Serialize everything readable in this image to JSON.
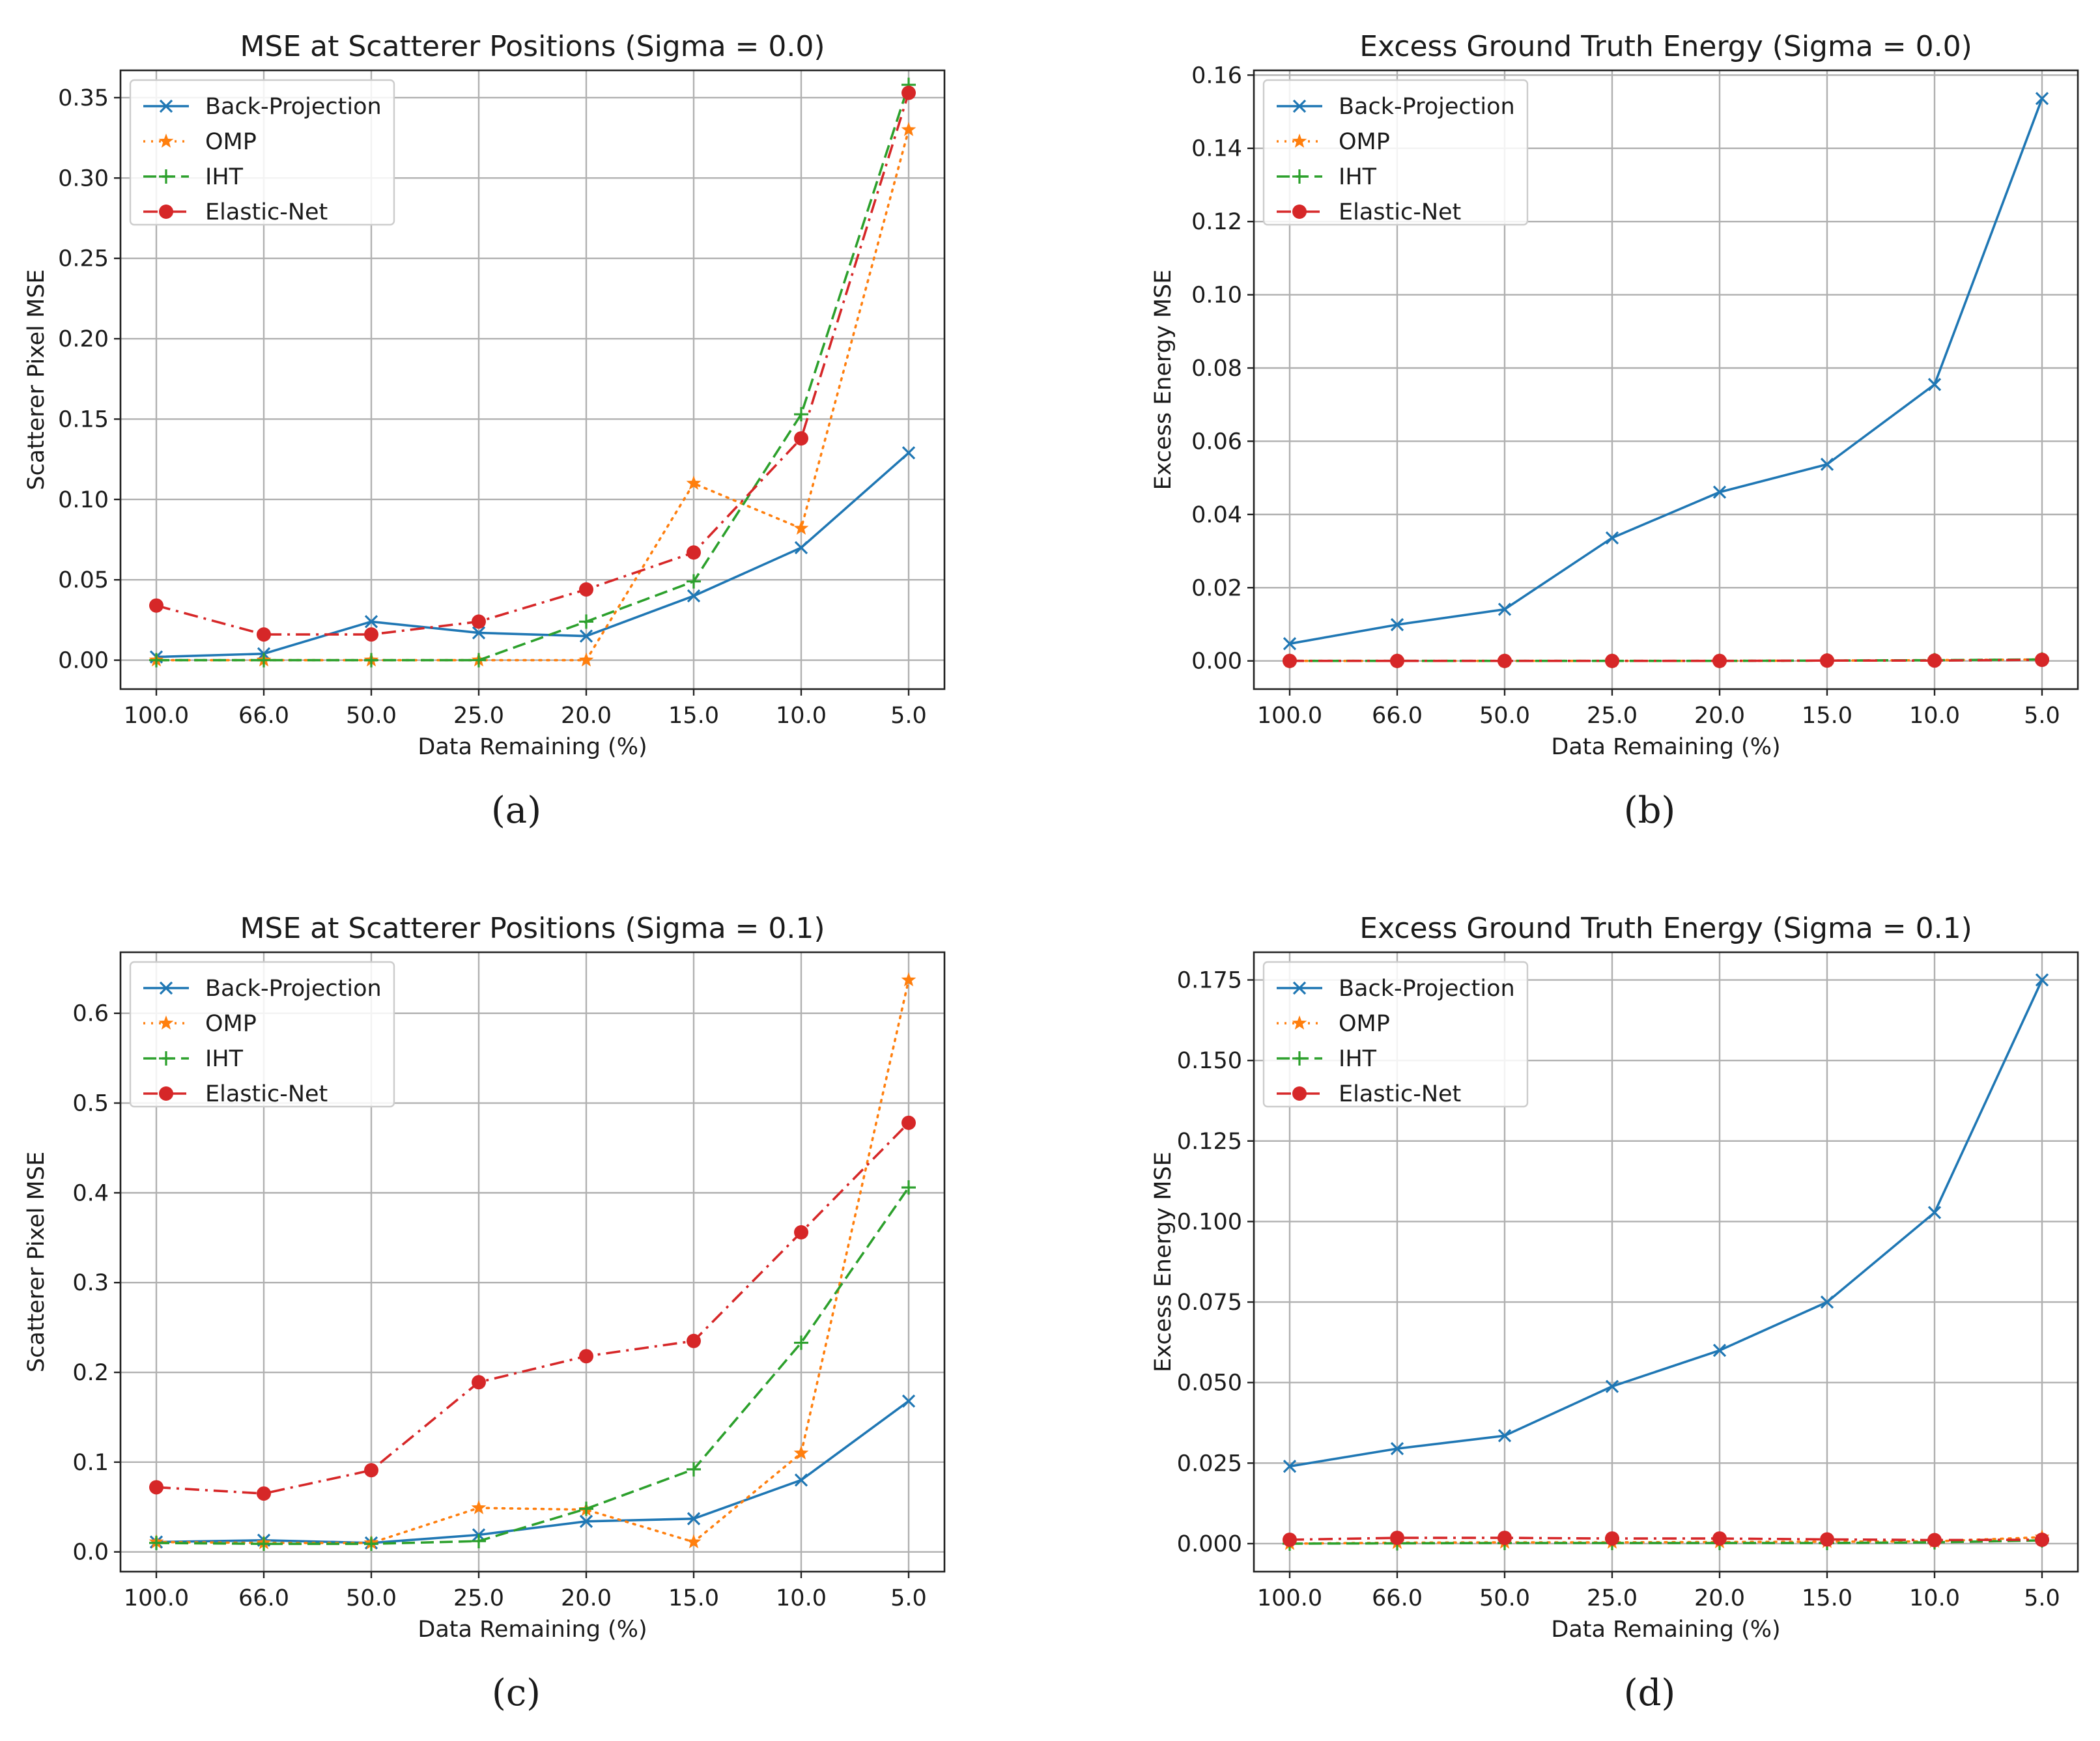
{
  "chart_data": [
    {
      "type": "line",
      "title": "MSE at Scatterer Positions (Sigma = 0.0)",
      "xlabel": "Data Remaining (%)",
      "ylabel": "Scatterer Pixel MSE",
      "categories": [
        "100.0",
        "66.0",
        "50.0",
        "25.0",
        "20.0",
        "15.0",
        "10.0",
        "5.0"
      ],
      "ylim": [
        -0.018,
        0.367
      ],
      "yticks": [
        0.0,
        0.05,
        0.1,
        0.15,
        0.2,
        0.25,
        0.3,
        0.35
      ],
      "ytick_labels": [
        "0.00",
        "0.05",
        "0.10",
        "0.15",
        "0.20",
        "0.25",
        "0.30",
        "0.35"
      ],
      "legend": "top-left",
      "grid": true,
      "caption": "(a)",
      "series": [
        {
          "name": "Back-Projection",
          "values": [
            0.002,
            0.004,
            0.024,
            0.017,
            0.015,
            0.04,
            0.07,
            0.129
          ]
        },
        {
          "name": "OMP",
          "values": [
            0.0,
            0.0,
            0.0,
            0.0,
            0.0,
            0.11,
            0.082,
            0.33
          ]
        },
        {
          "name": "IHT",
          "values": [
            0.0,
            0.0,
            0.0,
            0.0,
            0.024,
            0.049,
            0.153,
            0.358
          ]
        },
        {
          "name": "Elastic-Net",
          "values": [
            0.034,
            0.016,
            0.016,
            0.024,
            0.044,
            0.067,
            0.138,
            0.353
          ]
        }
      ]
    },
    {
      "type": "line",
      "title": "Excess Ground Truth Energy (Sigma = 0.0)",
      "xlabel": "Data Remaining (%)",
      "ylabel": "Excess Energy MSE",
      "categories": [
        "100.0",
        "66.0",
        "50.0",
        "25.0",
        "20.0",
        "15.0",
        "10.0",
        "5.0"
      ],
      "ylim": [
        -0.0077,
        0.1613
      ],
      "yticks": [
        0.0,
        0.02,
        0.04,
        0.06,
        0.08,
        0.1,
        0.12,
        0.14,
        0.16
      ],
      "ytick_labels": [
        "0.00",
        "0.02",
        "0.04",
        "0.06",
        "0.08",
        "0.10",
        "0.12",
        "0.14",
        "0.16"
      ],
      "legend": "top-left",
      "grid": true,
      "caption": "(b)",
      "series": [
        {
          "name": "Back-Projection",
          "values": [
            0.0047,
            0.0099,
            0.0141,
            0.0336,
            0.0461,
            0.0537,
            0.0755,
            0.1536
          ]
        },
        {
          "name": "OMP",
          "values": [
            0.0,
            0.0,
            0.0,
            0.0,
            0.0,
            0.0001,
            0.0002,
            0.0004
          ]
        },
        {
          "name": "IHT",
          "values": [
            0.0,
            0.0,
            0.0,
            0.0,
            0.0,
            0.0001,
            0.0002,
            0.0004
          ]
        },
        {
          "name": "Elastic-Net",
          "values": [
            0.0,
            0.0,
            0.0,
            0.0,
            0.0,
            0.0001,
            0.0001,
            0.0003
          ]
        }
      ]
    },
    {
      "type": "line",
      "title": "MSE at Scatterer Positions (Sigma = 0.1)",
      "xlabel": "Data Remaining (%)",
      "ylabel": "Scatterer Pixel MSE",
      "categories": [
        "100.0",
        "66.0",
        "50.0",
        "25.0",
        "20.0",
        "15.0",
        "10.0",
        "5.0"
      ],
      "ylim": [
        -0.022,
        0.668
      ],
      "yticks": [
        0.0,
        0.1,
        0.2,
        0.3,
        0.4,
        0.5,
        0.6
      ],
      "ytick_labels": [
        "0.0",
        "0.1",
        "0.2",
        "0.3",
        "0.4",
        "0.5",
        "0.6"
      ],
      "legend": "top-left",
      "grid": true,
      "caption": "(c)",
      "series": [
        {
          "name": "Back-Projection",
          "values": [
            0.011,
            0.013,
            0.01,
            0.019,
            0.034,
            0.037,
            0.08,
            0.168
          ]
        },
        {
          "name": "OMP",
          "values": [
            0.011,
            0.01,
            0.01,
            0.049,
            0.047,
            0.011,
            0.11,
            0.637
          ]
        },
        {
          "name": "IHT",
          "values": [
            0.01,
            0.009,
            0.009,
            0.012,
            0.048,
            0.092,
            0.233,
            0.406
          ]
        },
        {
          "name": "Elastic-Net",
          "values": [
            0.072,
            0.065,
            0.091,
            0.189,
            0.218,
            0.235,
            0.356,
            0.478
          ]
        }
      ]
    },
    {
      "type": "line",
      "title": "Excess Ground Truth Energy (Sigma = 0.1)",
      "xlabel": "Data Remaining (%)",
      "ylabel": "Excess Energy MSE",
      "categories": [
        "100.0",
        "66.0",
        "50.0",
        "25.0",
        "20.0",
        "15.0",
        "10.0",
        "5.0"
      ],
      "ylim": [
        -0.0087,
        0.1836
      ],
      "yticks": [
        0.0,
        0.025,
        0.05,
        0.075,
        0.1,
        0.125,
        0.15,
        0.175
      ],
      "ytick_labels": [
        "0.000",
        "0.025",
        "0.050",
        "0.075",
        "0.100",
        "0.125",
        "0.150",
        "0.175"
      ],
      "legend": "top-left",
      "grid": true,
      "caption": "(d)",
      "series": [
        {
          "name": "Back-Projection",
          "values": [
            0.024,
            0.0295,
            0.0335,
            0.0488,
            0.06,
            0.075,
            0.1028,
            0.175
          ]
        },
        {
          "name": "OMP",
          "values": [
            0.0,
            0.0003,
            0.0004,
            0.0004,
            0.0005,
            0.0006,
            0.0007,
            0.002
          ]
        },
        {
          "name": "IHT",
          "values": [
            0.0,
            0.0001,
            0.0002,
            0.0002,
            0.0002,
            0.0002,
            0.0004,
            0.001
          ]
        },
        {
          "name": "Elastic-Net",
          "values": [
            0.0012,
            0.0018,
            0.0018,
            0.0016,
            0.0016,
            0.0013,
            0.0011,
            0.0012
          ]
        }
      ]
    }
  ],
  "series_styles": [
    {
      "name": "Back-Projection",
      "color": "#1f77b4",
      "dash": "none",
      "marker": "x"
    },
    {
      "name": "OMP",
      "color": "#ff7f0e",
      "dash": "dotted",
      "marker": "star"
    },
    {
      "name": "IHT",
      "color": "#2ca02c",
      "dash": "dashed",
      "marker": "plus"
    },
    {
      "name": "Elastic-Net",
      "color": "#d62728",
      "dash": "dashdot",
      "marker": "circle"
    }
  ]
}
